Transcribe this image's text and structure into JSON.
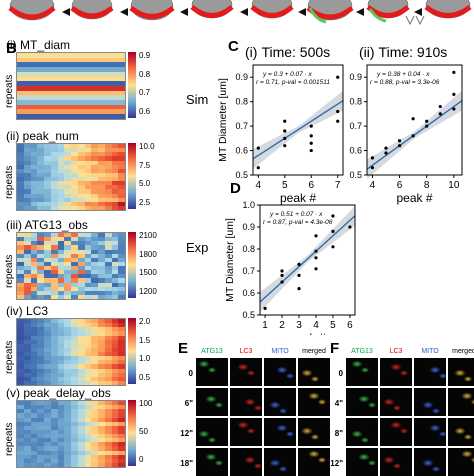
{
  "panel_B": {
    "letter": "B",
    "label_repeats": "repeats",
    "heatmaps": [
      {
        "roman": "(i)",
        "title": "MT_diam",
        "ticks": [
          "0.9",
          "0.8",
          "0.7",
          "0.6"
        ]
      },
      {
        "roman": "(ii)",
        "title": "peak_num",
        "ticks": [
          "10.0",
          "7.5",
          "5.0",
          "2.5"
        ]
      },
      {
        "roman": "(iii)",
        "title": "ATG13_obs",
        "ticks": [
          "2100",
          "1800",
          "1500",
          "1200"
        ]
      },
      {
        "roman": "(iv)",
        "title": "LC3",
        "ticks": [
          "2.0",
          "1.5",
          "1.0",
          "0.5"
        ]
      },
      {
        "roman": "(v)",
        "title": "peak_delay_obs",
        "ticks": [
          "100",
          "50",
          "0"
        ]
      }
    ]
  },
  "panel_C": {
    "letter": "C",
    "row_label": "Sim",
    "y_label": "MT Diameter [um]",
    "x_label": "peak #"
  },
  "panel_D": {
    "letter": "D",
    "row_label": "Exp",
    "y_label": "MT Diameter [um]",
    "x_label": "peak #"
  },
  "chart_data": [
    {
      "type": "scatter",
      "roman": "(i)",
      "title": "Time: 500s",
      "xlabel": "peak #",
      "ylabel": "MT Diameter [um]",
      "xlim": [
        3.8,
        7.2
      ],
      "ylim": [
        0.5,
        0.95
      ],
      "xticks": [
        "4",
        "5",
        "6",
        "7"
      ],
      "yticks": [
        "0.5",
        "0.6",
        "0.7",
        "0.8",
        "0.9"
      ],
      "eq_line1": "y = 0.3 + 0.07 · x",
      "eq_line2": "r = 0.71, p-val = 0.001511",
      "fit": {
        "intercept": 0.3,
        "slope": 0.07
      },
      "points": [
        [
          4,
          0.53
        ],
        [
          4,
          0.61
        ],
        [
          5,
          0.72
        ],
        [
          5,
          0.68
        ],
        [
          5,
          0.65
        ],
        [
          5,
          0.62
        ],
        [
          6,
          0.7
        ],
        [
          6,
          0.66
        ],
        [
          6,
          0.63
        ],
        [
          6,
          0.6
        ],
        [
          7,
          0.9
        ],
        [
          7,
          0.76
        ],
        [
          7,
          0.72
        ]
      ]
    },
    {
      "type": "scatter",
      "roman": "(ii)",
      "title": "Time: 910s",
      "xlabel": "peak #",
      "ylabel": "",
      "xlim": [
        3.6,
        10.6
      ],
      "ylim": [
        0.5,
        0.95
      ],
      "xticks": [
        "4",
        "6",
        "8",
        "10"
      ],
      "yticks": [
        "0.5",
        "0.6",
        "0.7",
        "0.8",
        "0.9"
      ],
      "eq_line1": "y = 0.38 + 0.04 · x",
      "eq_line2": "r = 0.88, p-val = 3.3e-06",
      "fit": {
        "intercept": 0.38,
        "slope": 0.04
      },
      "points": [
        [
          4,
          0.53
        ],
        [
          4,
          0.57
        ],
        [
          5,
          0.59
        ],
        [
          5,
          0.61
        ],
        [
          6,
          0.64
        ],
        [
          6,
          0.62
        ],
        [
          7,
          0.66
        ],
        [
          7,
          0.73
        ],
        [
          8,
          0.7
        ],
        [
          8,
          0.72
        ],
        [
          9,
          0.75
        ],
        [
          9,
          0.78
        ],
        [
          10,
          0.77
        ],
        [
          10,
          0.83
        ],
        [
          10,
          0.92
        ]
      ]
    },
    {
      "type": "scatter",
      "roman": "",
      "title": "",
      "xlabel": "peak #",
      "ylabel": "MT Diameter [um]",
      "xlim": [
        0.7,
        6.3
      ],
      "ylim": [
        0.5,
        1.0
      ],
      "xticks": [
        "1",
        "2",
        "3",
        "4",
        "5",
        "6"
      ],
      "yticks": [
        "0.5",
        "0.6",
        "0.7",
        "0.8",
        "0.9",
        "1.0"
      ],
      "eq_line1": "y = 0.51 + 0.07 · x",
      "eq_line2": "r = 0.87, p-val = 4.3e-06",
      "fit": {
        "intercept": 0.51,
        "slope": 0.07
      },
      "points": [
        [
          1,
          0.53
        ],
        [
          2,
          0.65
        ],
        [
          2,
          0.68
        ],
        [
          2,
          0.7
        ],
        [
          3,
          0.62
        ],
        [
          3,
          0.68
        ],
        [
          3,
          0.73
        ],
        [
          4,
          0.71
        ],
        [
          4,
          0.76
        ],
        [
          4,
          0.79
        ],
        [
          4,
          0.86
        ],
        [
          5,
          0.81
        ],
        [
          5,
          0.88
        ],
        [
          5,
          0.95
        ],
        [
          6,
          0.9
        ]
      ]
    }
  ],
  "panel_E": {
    "letter": "E",
    "headers": [
      "ATG13",
      "LC3",
      "MITO",
      "merged"
    ],
    "times": [
      "0",
      "6\"",
      "12\"",
      "18\""
    ]
  },
  "panel_F": {
    "letter": "F",
    "headers": [
      "ATG13",
      "LC3",
      "MITO",
      "merged"
    ],
    "times": [
      "0",
      "4\"",
      "8\"",
      "12\""
    ]
  },
  "colors": {
    "header_green": "#00a651",
    "header_red": "#e60000",
    "header_blue": "#2e5fd6",
    "fit_line": "#2b6cb0",
    "ci_band": "#cfd3d8"
  }
}
